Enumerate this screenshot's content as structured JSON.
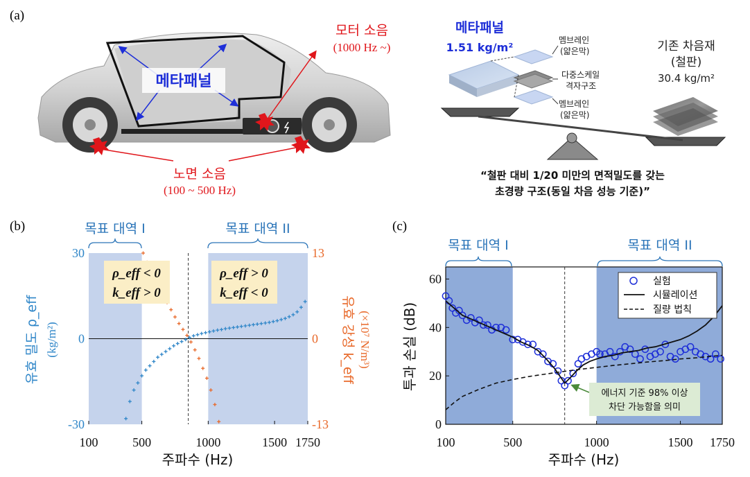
{
  "panel_a": {
    "label": "(a)",
    "car": {
      "metapanel_label": "메타패널",
      "motor_noise": "모터 소음",
      "motor_noise_range": "(1000 Hz ~)",
      "road_noise": "노면 소음",
      "road_noise_range": "(100 ~ 500 Hz)"
    },
    "balance": {
      "metapanel_title": "메타패널",
      "metapanel_density": "1.51 kg/m²",
      "layer_top": [
        "멤브레인",
        "(얇은막)"
      ],
      "layer_mid": [
        "다중스케일",
        "격자구조"
      ],
      "layer_bottom": [
        "멤브레인",
        "(얇은막)"
      ],
      "existing_title": "기존 차음재",
      "existing_sub": "(철판)",
      "existing_density": "30.4 kg/m²",
      "caption_line1": "“철판 대비 1/20 미만의 면적밀도를 갖는",
      "caption_line2": "초경량 구조(동일 차음 성능 기준)”"
    }
  },
  "panel_b": {
    "label": "(b)",
    "band1": "목표 대역 I",
    "band2": "목표 대역 II",
    "box1_line1": "ρ_eff < 0",
    "box1_line2": "k_eff > 0",
    "box2_line1": "ρ_eff > 0",
    "box2_line2": "k_eff < 0",
    "xlabel": "주파수 (Hz)",
    "ylabel_left": "유효 밀도 ρ_eff",
    "ylabel_left_unit": "(kg/m²)",
    "ylabel_right": "유효 강성 k_eff",
    "ylabel_right_unit": "(×10⁷ N/m³)",
    "left_color": "#2f86c8",
    "right_color": "#e8692a"
  },
  "panel_c": {
    "label": "(c)",
    "band1": "목표 대역 I",
    "band2": "목표 대역 II",
    "xlabel": "주파수 (Hz)",
    "ylabel": "투과 손실 (dB)",
    "legend": [
      "실험",
      "시뮬레이션",
      "질량 법칙"
    ],
    "annotation_line1": "에너지 기준 98% 이상",
    "annotation_line2": "차단 가능함을 의미"
  },
  "colors": {
    "band_fill": "#c5d3ec",
    "band_fill_dark": "#8fabd9",
    "title_blue": "#2a74b8",
    "metapanel_blue": "#1e2fd8",
    "noise_red": "#e0161b",
    "caption_box": "#fbeec6",
    "annotation_box": "#dcebd4"
  },
  "chart_data": [
    {
      "type": "scatter",
      "title": "",
      "x_ticks": [
        100,
        500,
        1000,
        1500,
        1750
      ],
      "y_left_ticks": [
        -30,
        0,
        30
      ],
      "y_left_lim": [
        -30,
        30
      ],
      "y_right_ticks": [
        -13,
        0,
        13
      ],
      "y_right_lim": [
        -13,
        13
      ],
      "xlim": [
        100,
        1750
      ],
      "bands": [
        [
          100,
          500
        ],
        [
          1000,
          1750
        ]
      ],
      "vline_x": 850,
      "series": [
        {
          "name": "ρ_eff",
          "axis": "left",
          "x": [
            380,
            410,
            440,
            470,
            500,
            530,
            560,
            590,
            620,
            650,
            680,
            710,
            740,
            770,
            800,
            830,
            860,
            890,
            920,
            950,
            980,
            1010,
            1040,
            1070,
            1100,
            1130,
            1160,
            1190,
            1220,
            1250,
            1280,
            1310,
            1340,
            1370,
            1400,
            1430,
            1460,
            1490,
            1520,
            1550,
            1580,
            1610,
            1640,
            1670,
            1700,
            1730
          ],
          "y": [
            -28,
            -22,
            -18,
            -15.5,
            -13,
            -11,
            -9.5,
            -8,
            -6.5,
            -5.5,
            -4.5,
            -3.5,
            -2.5,
            -1.7,
            -1,
            -0.3,
            0.4,
            1,
            1.4,
            1.8,
            2.1,
            2.4,
            2.7,
            3,
            3.2,
            3.5,
            3.7,
            3.9,
            4.1,
            4.3,
            4.5,
            4.7,
            4.9,
            5.1,
            5.3,
            5.5,
            5.7,
            6,
            6.3,
            6.7,
            7.1,
            7.7,
            8.4,
            9.4,
            11,
            13
          ]
        },
        {
          "name": "k_eff",
          "axis": "right",
          "x": [
            510,
            540,
            570,
            600,
            630,
            660,
            690,
            720,
            750,
            780,
            810,
            840,
            870,
            900,
            930,
            960,
            990,
            1020,
            1050,
            1080
          ],
          "y": [
            13,
            11.6,
            10.3,
            9,
            7.8,
            6.6,
            5.5,
            4.4,
            3.3,
            2.3,
            1.4,
            0.5,
            -0.5,
            -1.7,
            -3,
            -4.5,
            -6,
            -7.8,
            -10,
            -12.6
          ]
        }
      ]
    },
    {
      "type": "line",
      "title": "",
      "x_ticks": [
        100,
        500,
        1000,
        1500,
        1750
      ],
      "xlim": [
        100,
        1750
      ],
      "y_ticks": [
        0,
        20,
        40,
        60
      ],
      "ylim": [
        0,
        65
      ],
      "bands": [
        [
          100,
          500
        ],
        [
          1000,
          1750
        ]
      ],
      "vline_x": 810,
      "legend_position": "top-right",
      "series": [
        {
          "name": "실험",
          "style": "open-circles",
          "x": [
            100,
            120,
            140,
            160,
            180,
            200,
            225,
            250,
            275,
            300,
            325,
            350,
            375,
            400,
            430,
            460,
            500,
            530,
            560,
            590,
            620,
            650,
            680,
            710,
            740,
            770,
            790,
            810,
            830,
            860,
            890,
            910,
            940,
            970,
            1000,
            1020,
            1050,
            1080,
            1110,
            1140,
            1170,
            1200,
            1230,
            1260,
            1290,
            1320,
            1350,
            1380,
            1410,
            1440,
            1470,
            1500,
            1530,
            1560,
            1590,
            1620,
            1650,
            1680,
            1710,
            1740
          ],
          "y": [
            53,
            51,
            48,
            46,
            47,
            45,
            43,
            44,
            42,
            43,
            41,
            41,
            39,
            40,
            40,
            39,
            35,
            35,
            34,
            33,
            33,
            30,
            29,
            26,
            25,
            22,
            18,
            16,
            18,
            21,
            25,
            27,
            28,
            29,
            30,
            29,
            29,
            30,
            28,
            30,
            32,
            31,
            29,
            27,
            31,
            28,
            29,
            30,
            33,
            28,
            27,
            30,
            31,
            32,
            30,
            29,
            28,
            27,
            29,
            27
          ]
        },
        {
          "name": "시뮬레이션",
          "style": "solid",
          "x": [
            100,
            150,
            200,
            250,
            300,
            350,
            400,
            450,
            500,
            550,
            600,
            650,
            700,
            750,
            790,
            810,
            840,
            880,
            920,
            960,
            1000,
            1050,
            1100,
            1150,
            1200,
            1250,
            1300,
            1350,
            1400,
            1450,
            1500,
            1550,
            1600,
            1650,
            1700,
            1750
          ],
          "y": [
            51,
            48,
            45,
            43.5,
            42,
            40.5,
            39,
            37.5,
            36,
            34,
            32.5,
            30.5,
            27,
            23,
            19,
            17,
            19,
            22,
            24.5,
            26,
            27,
            28,
            28.5,
            29.5,
            30,
            30.5,
            31.5,
            32,
            33,
            34,
            35,
            36.5,
            38.5,
            41,
            44.5,
            49
          ]
        },
        {
          "name": "질량 법칙",
          "style": "dashed",
          "x": [
            100,
            150,
            200,
            300,
            400,
            500,
            600,
            700,
            800,
            900,
            1000,
            1100,
            1200,
            1300,
            1400,
            1500,
            1600,
            1700,
            1750
          ],
          "y": [
            6,
            9,
            11.5,
            14.5,
            17,
            18.5,
            19.8,
            20.8,
            21.8,
            22.7,
            23.5,
            24.3,
            25,
            25.7,
            26.3,
            27,
            27.5,
            28.2,
            28.5
          ]
        }
      ]
    }
  ]
}
